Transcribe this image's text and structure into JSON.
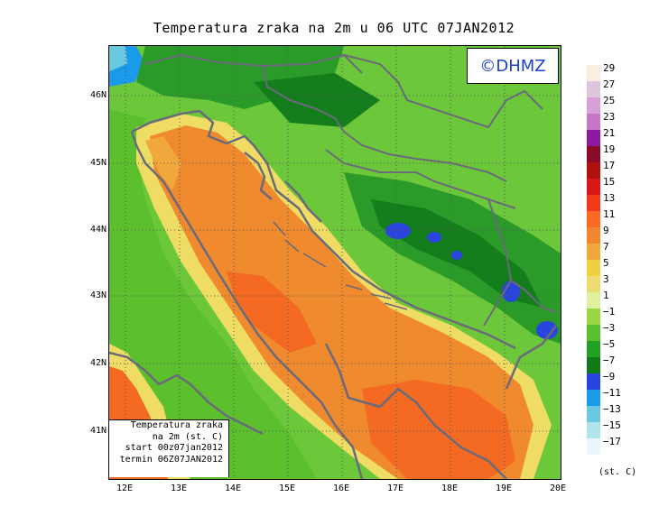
{
  "title": "Temperatura zraka na 2m u 06 UTC 07JAN2012",
  "logo": "©DHMZ",
  "infobox": {
    "line1": "Temperatura zraka",
    "line2": "na 2m (st. C)",
    "line3": "start 00z07jan2012",
    "line4": "termin 06Z07JAN2012"
  },
  "y_axis": [
    "46N",
    "45N",
    "44N",
    "43N",
    "42N",
    "41N"
  ],
  "x_axis": [
    "12E",
    "13E",
    "14E",
    "15E",
    "16E",
    "17E",
    "18E",
    "19E",
    "20E"
  ],
  "legend": {
    "unit": "(st. C)",
    "levels": [
      "29",
      "27",
      "25",
      "23",
      "21",
      "19",
      "17",
      "15",
      "13",
      "11",
      "9",
      "7",
      "5",
      "3",
      "1",
      "−1",
      "−3",
      "−5",
      "−7",
      "−9",
      "−11",
      "−13",
      "−15",
      "−17"
    ],
    "colors": [
      "#fbeee0",
      "#dcc6dc",
      "#d7a0d7",
      "#c678c6",
      "#8c1aa0",
      "#8a0a2a",
      "#b01010",
      "#d81818",
      "#f23a1a",
      "#fa6a22",
      "#f2862e",
      "#f0a83c",
      "#f0d040",
      "#eedc70",
      "#dff0a0",
      "#9ad642",
      "#5cc02e",
      "#24a024",
      "#107a18",
      "#2a44e0",
      "#1a9ae8",
      "#6ac8e0",
      "#b0e4e8",
      "#e8f8f8"
    ]
  },
  "map": {
    "regions": [
      "sea-warm",
      "coast-yellow",
      "land-green",
      "mountain-dark",
      "cold-blue"
    ],
    "colors": {
      "land": "#6cc83a",
      "land_dark": "#2a9a28",
      "forest": "#147e1c",
      "blue": "#2a44e0",
      "sea_orange": "#ef8a2e",
      "sea_red": "#f46a22",
      "yellow": "#eedc64",
      "lightyellow": "#dff0a0",
      "coast": "#6a6a7a"
    }
  }
}
